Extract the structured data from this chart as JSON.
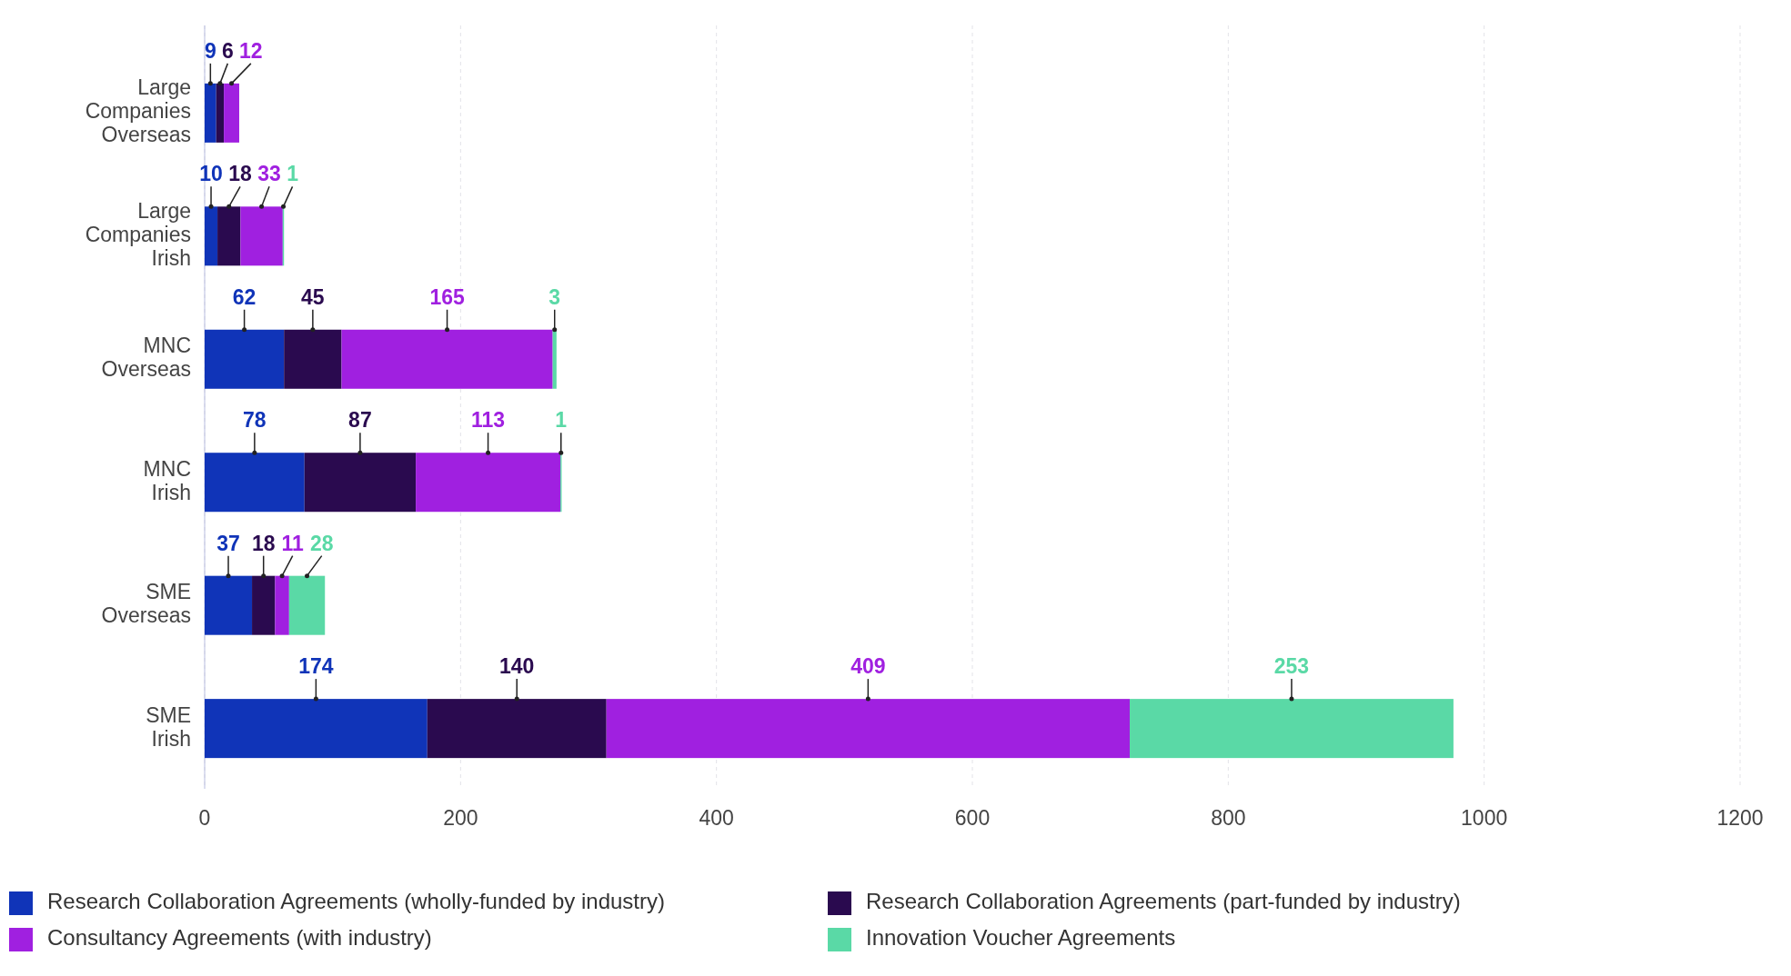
{
  "chart_data": {
    "type": "bar",
    "orientation": "horizontal",
    "stacked": true,
    "categories": [
      "Large Companies Overseas",
      "Large Companies Irish",
      "MNC Overseas",
      "MNC Irish",
      "SME Overseas",
      "SME Irish"
    ],
    "series": [
      {
        "name": "Research Collaboration Agreements (wholly-funded by industry)",
        "color": "#1034b8",
        "values": [
          9,
          10,
          62,
          78,
          37,
          174
        ]
      },
      {
        "name": "Research Collaboration Agreements (part-funded by industry)",
        "color": "#2a0a4f",
        "values": [
          6,
          18,
          45,
          87,
          18,
          140
        ]
      },
      {
        "name": "Consultancy Agreements (with industry)",
        "color": "#a020e0",
        "values": [
          12,
          33,
          165,
          113,
          11,
          409
        ]
      },
      {
        "name": "Innovation Voucher Agreements",
        "color": "#5ad9a6",
        "values": [
          null,
          1,
          3,
          1,
          28,
          253
        ]
      }
    ],
    "xlim": [
      0,
      1200
    ],
    "xticks": [
      0,
      200,
      400,
      600,
      800,
      1000,
      1200
    ],
    "grid": "x",
    "legend": "bottom",
    "data_labels": true
  }
}
